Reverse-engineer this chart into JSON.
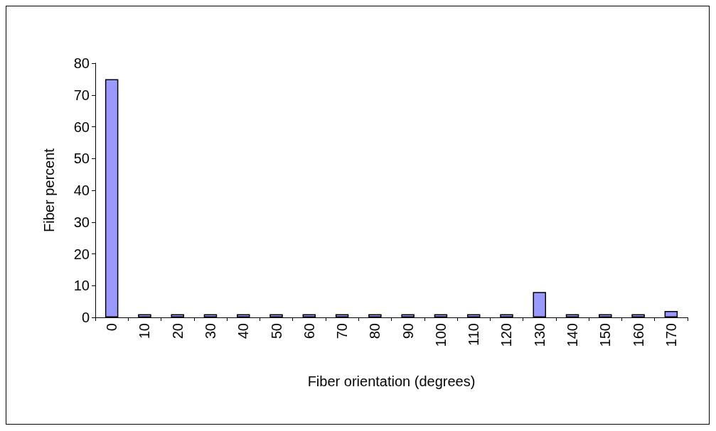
{
  "chart_data": {
    "type": "bar",
    "xlabel": "Fiber orientation (degrees)",
    "ylabel": "Fiber percent",
    "categories": [
      "0",
      "10",
      "20",
      "30",
      "40",
      "50",
      "60",
      "70",
      "80",
      "90",
      "100",
      "110",
      "120",
      "130",
      "140",
      "150",
      "160",
      "170"
    ],
    "values": [
      75,
      1,
      1,
      1,
      1,
      1,
      1,
      1,
      1,
      1,
      1,
      1,
      1,
      8,
      1,
      1,
      1,
      2
    ],
    "color": "#9999ff",
    "ylim": [
      0,
      80
    ],
    "yticks": [
      0,
      10,
      20,
      30,
      40,
      50,
      60,
      70,
      80
    ],
    "grid": false
  }
}
